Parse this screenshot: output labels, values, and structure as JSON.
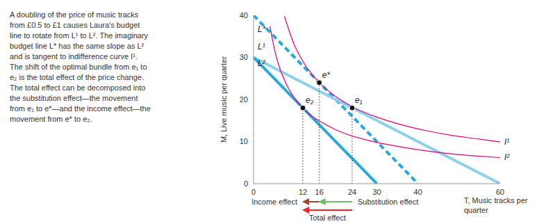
{
  "chart_data": {
    "type": "line",
    "caption": "A doubling of the price of music tracks from £0.5 to £1 causes Laura's budget line to rotate from L¹ to L². The imaginary budget line L* has the same slope as L² and is tangent to indifference curve I¹. The shift of the optimal bundle from e₁ to e₂ is the total effect of the price change. The total effect can be decomposed into the substitution effect—the movement from e₁ to e*—and the income effect—the movement from e* to e₂.",
    "xlabel": "T, Music tracks per quarter",
    "ylabel": "M, Live music per quarter",
    "xlim": [
      0,
      60
    ],
    "xticks": [
      0,
      12,
      16,
      24,
      30,
      40,
      60
    ],
    "ylim": [
      0,
      40
    ],
    "yticks": [
      0,
      10,
      20,
      30,
      40
    ],
    "grid": false,
    "series": [
      {
        "name": "L*",
        "color": "#29a8df",
        "line_style": "dashed",
        "x": [
          0,
          40
        ],
        "values": [
          40,
          0
        ]
      },
      {
        "name": "L¹",
        "color": "#8dd0ee",
        "line_style": "solid",
        "x": [
          0,
          60
        ],
        "values": [
          30,
          0
        ]
      },
      {
        "name": "L²",
        "color": "#29a8df",
        "line_style": "solid",
        "x": [
          0,
          30
        ],
        "values": [
          30,
          0
        ]
      },
      {
        "name": "I¹",
        "color": "#e2007a",
        "line_style": "solid",
        "x": [
          7.5,
          10,
          12,
          14,
          16,
          20,
          24,
          30,
          36,
          42,
          48,
          54,
          60
        ],
        "values": [
          39.8,
          32.8,
          29.1,
          26.2,
          24.0,
          20.7,
          18.3,
          15.8,
          14.0,
          12.6,
          11.5,
          10.7,
          9.9
        ]
      },
      {
        "name": "I²",
        "color": "#e2007a",
        "line_style": "solid",
        "x": [
          4,
          5,
          6,
          8,
          10,
          12,
          14,
          16,
          20,
          24,
          30,
          36,
          42,
          48,
          54,
          60
        ],
        "values": [
          37.4,
          32.3,
          28.6,
          23.6,
          20.3,
          18.0,
          16.2,
          14.9,
          12.8,
          11.3,
          9.8,
          8.7,
          7.8,
          7.1,
          6.6,
          6.2
        ]
      }
    ],
    "points": [
      {
        "name": "e₂",
        "x": 12,
        "y": 18
      },
      {
        "name": "e*",
        "x": 16,
        "y": 24
      },
      {
        "name": "e₁",
        "x": 24,
        "y": 18
      }
    ],
    "effects": [
      {
        "label": "Income effect",
        "from": 16,
        "to": 12,
        "color": "#a3432b"
      },
      {
        "label": "Substitution effect",
        "from": 24,
        "to": 16,
        "color": "#6abf69"
      },
      {
        "label": "Total effect",
        "from": 24,
        "to": 12,
        "color": "#e8262b"
      }
    ]
  }
}
